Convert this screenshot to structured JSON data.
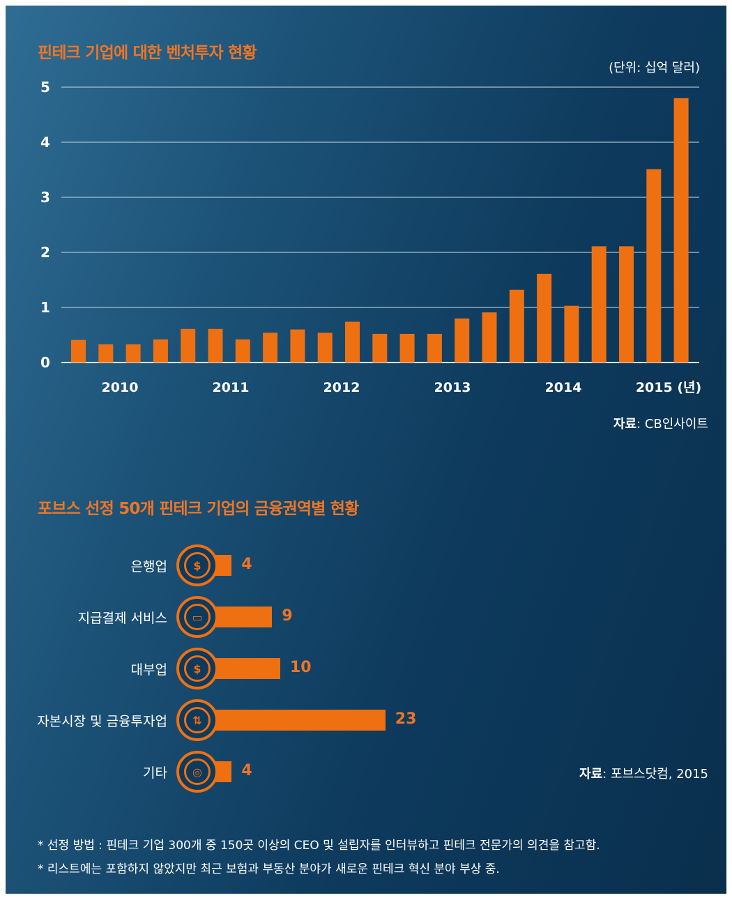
{
  "chart_data": [
    {
      "type": "bar",
      "title": "핀테크 기업에 대한 벤처투자 현황",
      "unit_label": "(단위: 십억 달러)",
      "ylim": [
        0,
        5
      ],
      "yticks": [
        "0",
        "1",
        "2",
        "3",
        "4",
        "5"
      ],
      "x_year_labels": [
        "2010",
        "2011",
        "2012",
        "2013",
        "2014",
        "2015 (년)"
      ],
      "grid": true,
      "series": [
        {
          "values": [
            0.41,
            0.33,
            0.33,
            0.42,
            0.61,
            0.61,
            0.42,
            0.54,
            0.6,
            0.54,
            0.74,
            0.52,
            0.52,
            0.52,
            0.8,
            0.91,
            1.32,
            1.61,
            1.03,
            2.11,
            2.11,
            3.51,
            4.8
          ]
        }
      ],
      "source_label": "자료",
      "source_text": ": CB인사이트"
    },
    {
      "type": "bar",
      "orientation": "horizontal",
      "title": "포브스 선정 50개 핀테크 기업의 금융권역별 현황",
      "categories": [
        "은행업",
        "지급결제 서비스",
        "대부업",
        "자본시장 및 금융투자업",
        "기타"
      ],
      "values": [
        4,
        9,
        10,
        23,
        4
      ],
      "icons": [
        "bank-icon",
        "card-icon",
        "loan-icon",
        "exchange-icon",
        "coins-icon"
      ],
      "source_label": "자료",
      "source_text": ": 포브스닷컴, 2015"
    }
  ],
  "footnotes": [
    "* 선정 방법 : 핀테크 기업 300개 중 150곳 이상의 CEO 및 설립자를 인터뷰하고 핀테크 전문가의 의견을 참고함.",
    "* 리스트에는 포함하지 않았지만 최근 보험과 부동산 분야가 새로운 핀테크 혁신 분야 부상 중."
  ],
  "icon_glyphs": [
    "$",
    "▭",
    "$",
    "⇅",
    "◎"
  ],
  "colors": {
    "accent": "#ef7011",
    "background": "#0d3a5d",
    "text": "#ffffff"
  }
}
